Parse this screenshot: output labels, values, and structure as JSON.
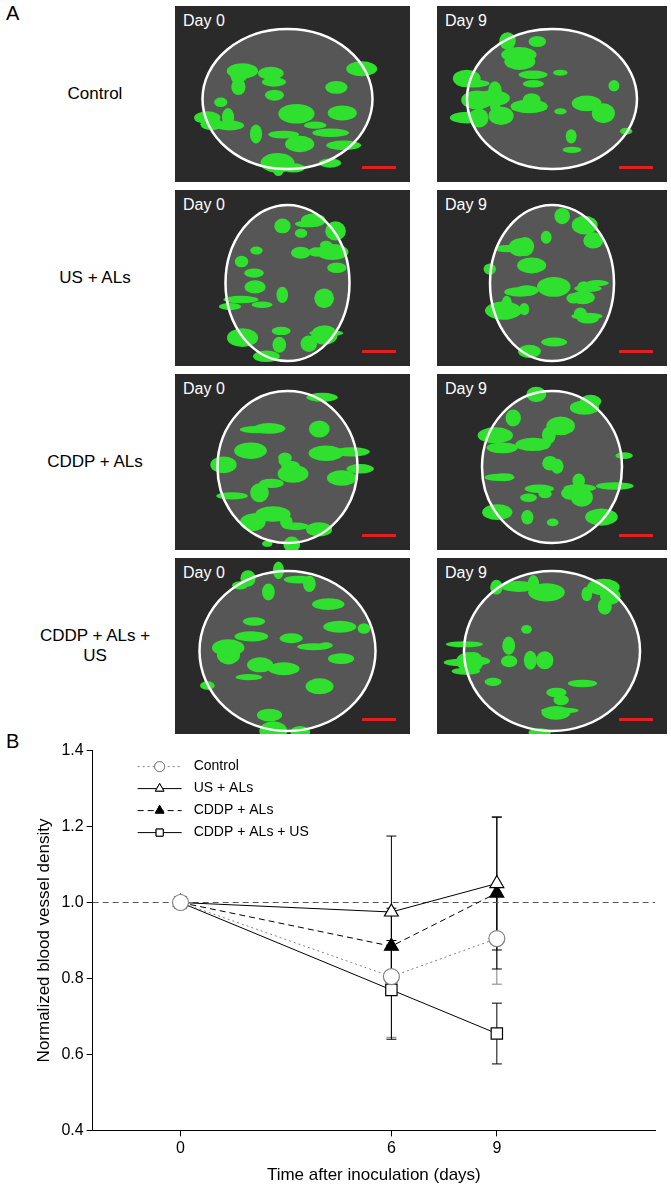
{
  "panel_a": {
    "label": "A",
    "columns": [
      "Day 0",
      "Day 9"
    ],
    "rows": [
      "Control",
      "US + ALs",
      "CDDP + ALs",
      "CDDP + ALs + US"
    ]
  },
  "chart_data": {
    "type": "line",
    "panel_label": "B",
    "x_label": "Time after inoculation (days)",
    "y_label": "Normalized blood vessel density",
    "x": [
      0,
      6,
      9
    ],
    "xlim": [
      -2.5,
      13.5
    ],
    "xticks": [
      0,
      6,
      9
    ],
    "ylim": [
      0.4,
      1.4
    ],
    "yticks": [
      0.4,
      0.6,
      0.8,
      {
        "value": 1,
        "label": "1.0"
      },
      1.2,
      1.4
    ],
    "grid": false,
    "legend": "top-left",
    "reference_line": 1,
    "series": [
      {
        "name": "Control",
        "color": "#808080",
        "marker": "circle",
        "line_style": "dotted",
        "values": [
          1.0,
          0.805,
          0.905
        ],
        "errors": [
          0,
          0.16,
          0.12
        ]
      },
      {
        "name": "US + ALs",
        "color": "#000000",
        "marker": "triangle",
        "line_style": "solid",
        "values": [
          1.0,
          0.975,
          1.05
        ],
        "errors": [
          0,
          0.2,
          0.175
        ]
      },
      {
        "name": "CDDP + ALs",
        "color": "#000000",
        "marker": "filled_triangle",
        "line_style": "dashed",
        "values": [
          1.0,
          0.885,
          1.025
        ],
        "errors": [
          0,
          0.1,
          0.2
        ]
      },
      {
        "name": "CDDP + ALs + US",
        "color": "#000000",
        "marker": "square",
        "line_style": "solid",
        "values": [
          1.0,
          0.77,
          0.655
        ],
        "errors": [
          0,
          0.13,
          0.08
        ]
      }
    ]
  }
}
